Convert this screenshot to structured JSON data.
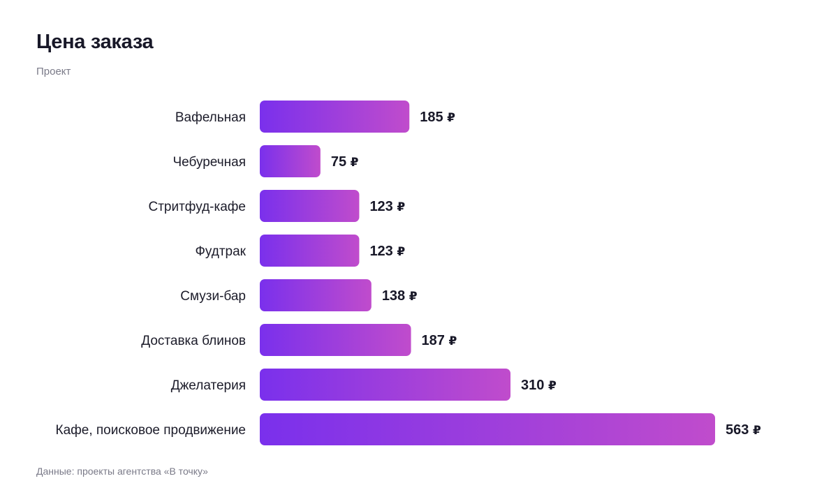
{
  "header": {
    "title": "Цена заказа",
    "subtitle": "Проект"
  },
  "footer": {
    "source": "Данные: проекты агентства «В точку»"
  },
  "colors": {
    "bar_start": "#7a30ec",
    "bar_end": "#c04ccc",
    "text": "#181828",
    "muted": "#7a7a88"
  },
  "chart_data": {
    "type": "bar",
    "orientation": "horizontal",
    "unit": "₽",
    "categories": [
      "Вафельная",
      "Чебуречная",
      "Стритфуд-кафе",
      "Фудтрак",
      "Смузи-бар",
      "Доставка блинов",
      "Джелатерия",
      "Кафе, поисковое продвижение"
    ],
    "values": [
      185,
      75,
      123,
      123,
      138,
      187,
      310,
      563
    ],
    "grid": false,
    "legend": "none",
    "xlim": [
      0,
      563
    ]
  }
}
